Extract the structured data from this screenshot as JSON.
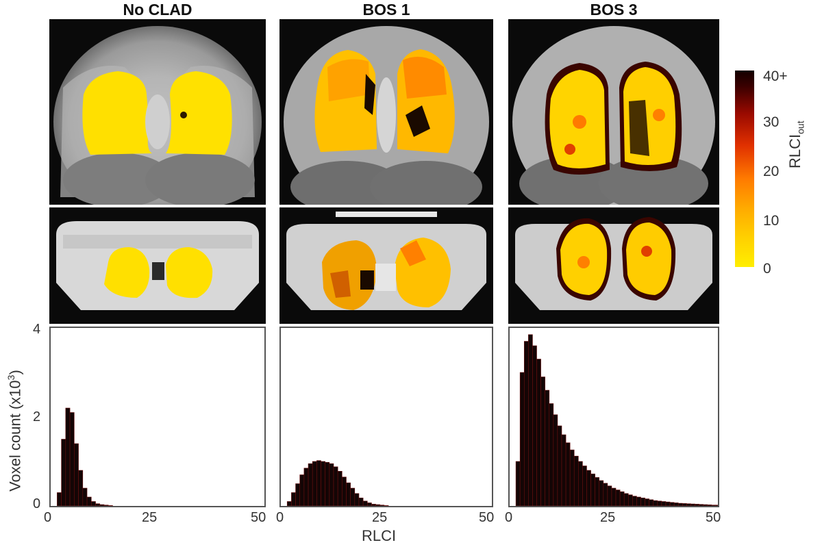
{
  "columns": [
    "No CLAD",
    "BOS 1",
    "BOS 3"
  ],
  "colorbar": {
    "title": "RLCI",
    "title_sub": "out",
    "labels": [
      "40+",
      "30",
      "20",
      "10",
      "0"
    ],
    "stops": [
      "#ffee00",
      "#ffaa00",
      "#e03000",
      "#9a0a00",
      "#120000"
    ]
  },
  "axes": {
    "y_title": "Voxel count (x10",
    "y_title_sup": "3",
    "y_title_end": ")",
    "x_title": "RLCI",
    "y_ticks": [
      "0",
      "2",
      "4"
    ],
    "x_ticks": [
      "0",
      "25",
      "50"
    ]
  },
  "chart_data": [
    {
      "type": "bar",
      "title": "No CLAD",
      "xlabel": "RLCI",
      "ylabel": "Voxel count (x10^3)",
      "xlim": [
        0,
        50
      ],
      "ylim": [
        0,
        4
      ],
      "x": [
        2,
        3,
        4,
        5,
        6,
        7,
        8,
        9,
        10,
        11,
        12,
        13,
        14,
        15
      ],
      "values": [
        0.3,
        1.5,
        2.2,
        2.1,
        1.4,
        0.8,
        0.4,
        0.2,
        0.1,
        0.05,
        0.03,
        0.02,
        0.01,
        0.0
      ]
    },
    {
      "type": "bar",
      "title": "BOS 1",
      "xlabel": "RLCI",
      "ylabel": "Voxel count (x10^3)",
      "xlim": [
        0,
        50
      ],
      "ylim": [
        0,
        4
      ],
      "x": [
        2,
        3,
        4,
        5,
        6,
        7,
        8,
        9,
        10,
        11,
        12,
        13,
        14,
        15,
        16,
        17,
        18,
        19,
        20,
        21,
        22,
        23,
        24,
        25
      ],
      "values": [
        0.1,
        0.3,
        0.5,
        0.7,
        0.85,
        0.95,
        1.0,
        1.02,
        1.0,
        0.98,
        0.95,
        0.88,
        0.78,
        0.65,
        0.52,
        0.4,
        0.28,
        0.18,
        0.11,
        0.07,
        0.04,
        0.03,
        0.02,
        0.01
      ]
    },
    {
      "type": "bar",
      "title": "BOS 3",
      "xlabel": "RLCI",
      "ylabel": "Voxel count (x10^3)",
      "xlim": [
        0,
        50
      ],
      "ylim": [
        0,
        4
      ],
      "x": [
        2,
        3,
        4,
        5,
        6,
        7,
        8,
        9,
        10,
        11,
        12,
        13,
        14,
        15,
        16,
        17,
        18,
        19,
        20,
        21,
        22,
        23,
        24,
        25,
        26,
        27,
        28,
        29,
        30,
        31,
        32,
        33,
        34,
        35,
        36,
        37,
        38,
        39,
        40,
        41,
        42,
        43,
        44,
        45,
        46,
        47,
        48,
        49,
        50
      ],
      "values": [
        1.0,
        3.0,
        3.7,
        3.85,
        3.6,
        3.3,
        2.9,
        2.6,
        2.3,
        2.05,
        1.8,
        1.6,
        1.42,
        1.26,
        1.12,
        1.0,
        0.9,
        0.8,
        0.72,
        0.64,
        0.57,
        0.51,
        0.45,
        0.4,
        0.36,
        0.32,
        0.28,
        0.25,
        0.22,
        0.2,
        0.18,
        0.16,
        0.14,
        0.12,
        0.11,
        0.1,
        0.09,
        0.08,
        0.07,
        0.06,
        0.055,
        0.05,
        0.045,
        0.04,
        0.035,
        0.03,
        0.025,
        0.02,
        0.02
      ]
    }
  ]
}
